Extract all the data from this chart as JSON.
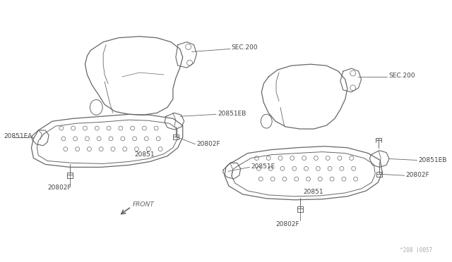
{
  "background_color": "#ffffff",
  "line_color": "#666666",
  "label_color": "#444444",
  "line_width": 0.9,
  "font_size": 6.5,
  "watermark": "^208 )0057",
  "labels": {
    "SEC200_top": "SEC.200",
    "20851EB_top": "20851EB",
    "20851EA": "20851EA",
    "20851_left": "20851",
    "20802F_left_bottom": "20802F",
    "20802F_left_mid": "20802F",
    "20851E": "20851E",
    "20802F_mid": "20802F",
    "SEC200_right": "SEC.200",
    "20851EB_right": "20851EB",
    "20851_right": "20851",
    "20802F_right_top": "20802F",
    "20802F_right_bottom": "20802F",
    "FRONT": "FRONT"
  }
}
